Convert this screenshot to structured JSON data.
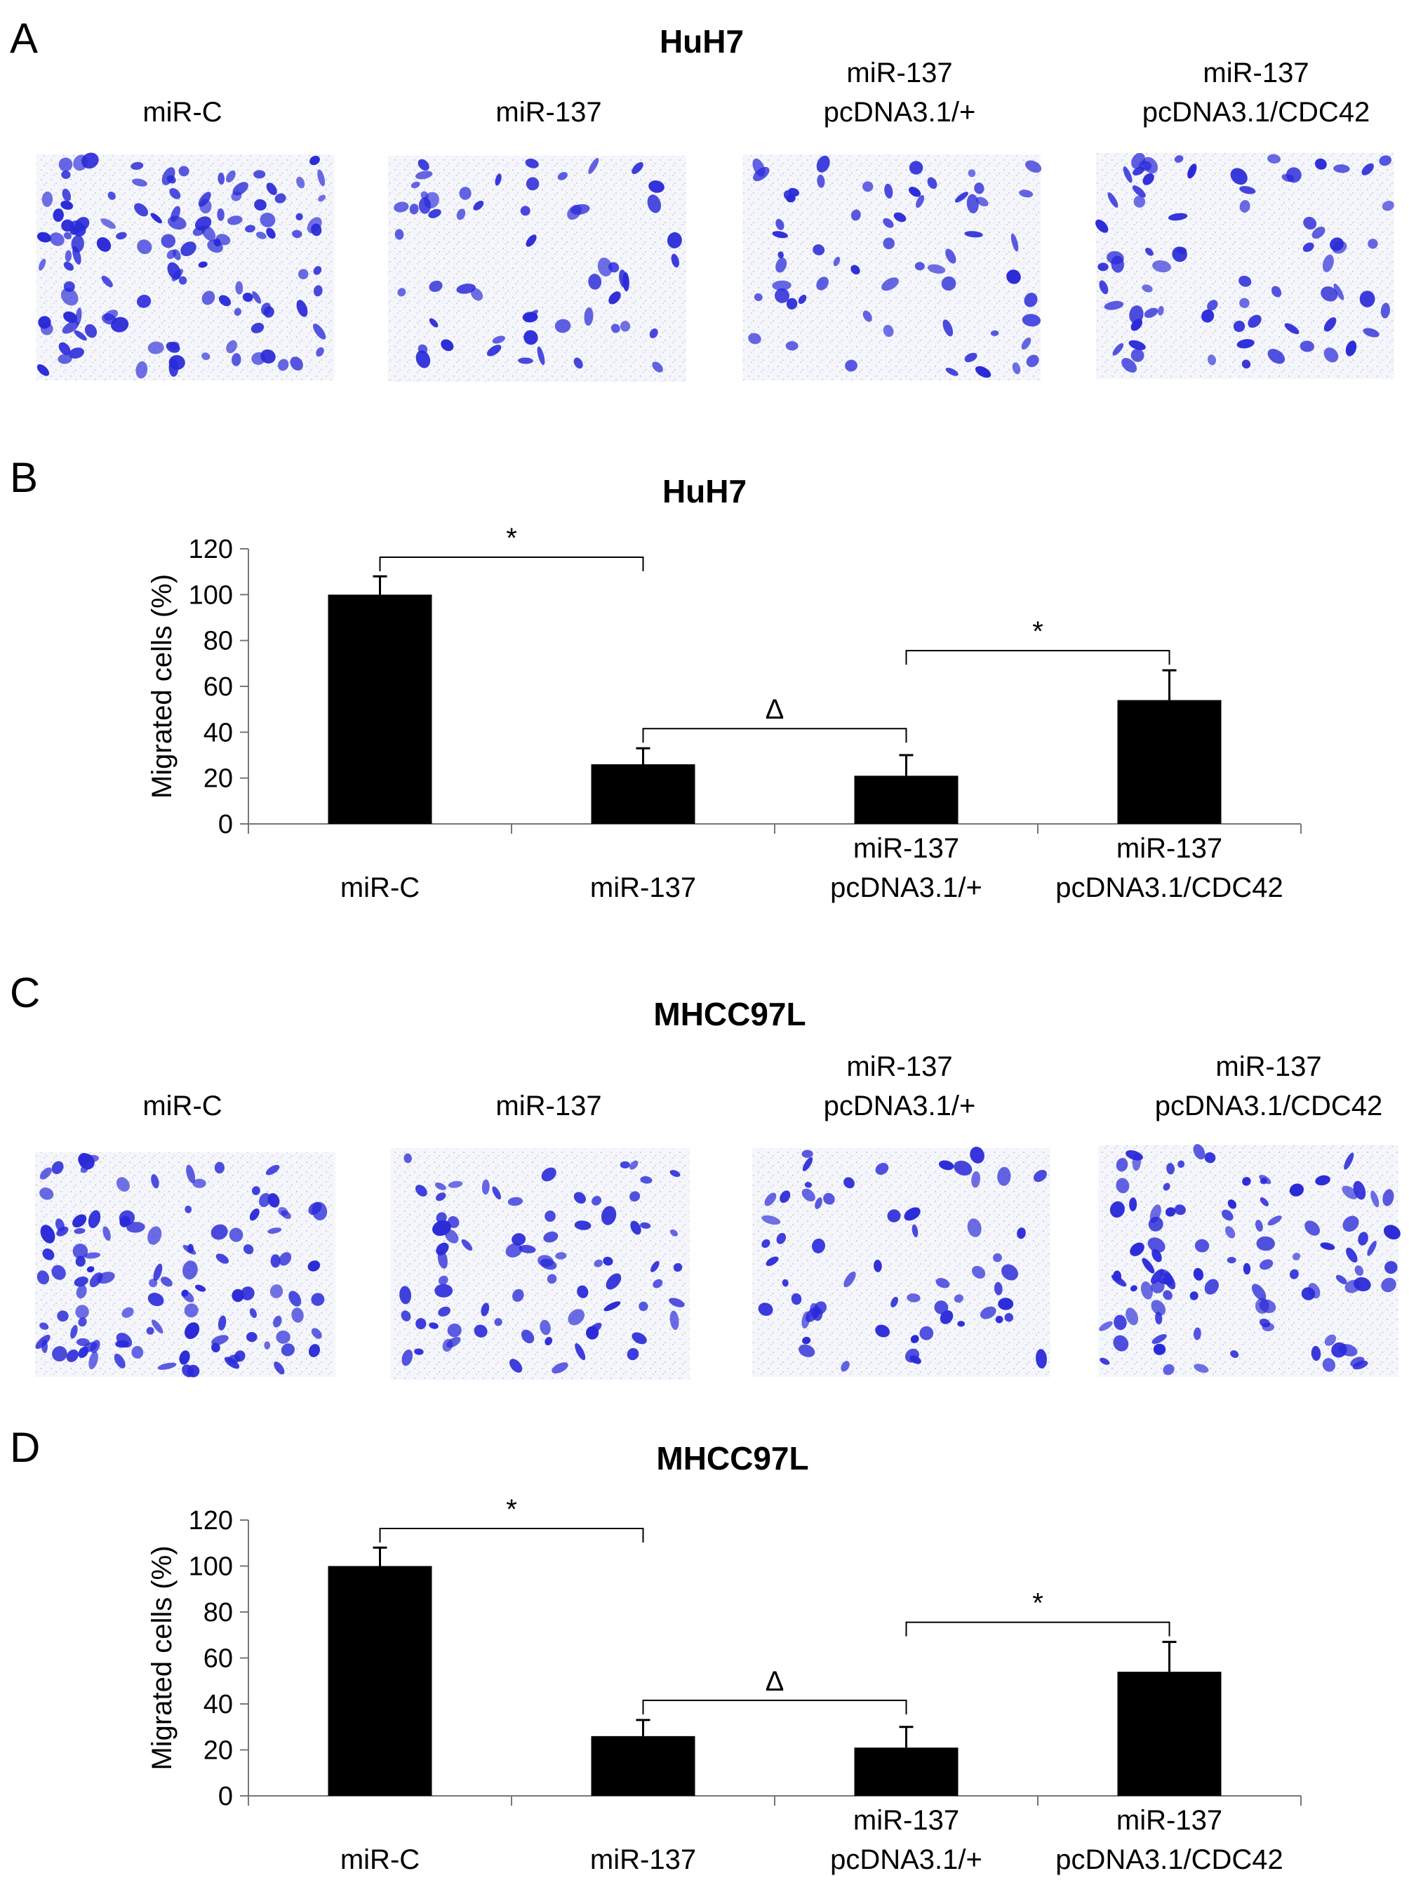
{
  "panels": {
    "A": {
      "letter": "A",
      "title": "HuH7",
      "labels": [
        "miR-C",
        "miR-137",
        "miR-137\npcDNA3.1/+",
        "miR-137\npcDNA3.1/CDC42"
      ]
    },
    "B": {
      "letter": "B"
    },
    "C": {
      "letter": "C",
      "title": "MHCC97L",
      "labels": [
        "miR-C",
        "miR-137",
        "miR-137\npcDNA3.1/+",
        "miR-137\npcDNA3.1/CDC42"
      ]
    },
    "D": {
      "letter": "D"
    }
  },
  "colors": {
    "bar": "#000000",
    "stain": "#2a2ad8",
    "background": "#ffffff"
  },
  "chart_data": [
    {
      "type": "bar",
      "title": "HuH7",
      "ylabel": "Migrated cells (%)",
      "xlabel": "",
      "ylim": [
        0,
        120
      ],
      "yticks": [
        0,
        20,
        40,
        60,
        80,
        100,
        120
      ],
      "categories": [
        "miR-C",
        "miR-137",
        "miR-137\npcDNA3.1/+",
        "miR-137\npcDNA3.1/CDC42"
      ],
      "values": [
        100,
        26,
        21,
        54
      ],
      "errors": [
        8,
        7,
        9,
        13
      ],
      "grid": false,
      "annotations": [
        {
          "from": 0,
          "to": 1,
          "symbol": "*"
        },
        {
          "from": 1,
          "to": 2,
          "symbol": "Δ"
        },
        {
          "from": 2,
          "to": 3,
          "symbol": "*"
        }
      ]
    },
    {
      "type": "bar",
      "title": "MHCC97L",
      "ylabel": "Migrated cells (%)",
      "xlabel": "",
      "ylim": [
        0,
        120
      ],
      "yticks": [
        0,
        20,
        40,
        60,
        80,
        100,
        120
      ],
      "categories": [
        "miR-C",
        "miR-137",
        "miR-137\npcDNA3.1/+",
        "miR-137\npcDNA3.1/CDC42"
      ],
      "values": [
        100,
        26,
        21,
        54
      ],
      "errors": [
        8,
        7,
        9,
        13
      ],
      "grid": false,
      "annotations": [
        {
          "from": 0,
          "to": 1,
          "symbol": "*"
        },
        {
          "from": 1,
          "to": 2,
          "symbol": "Δ"
        },
        {
          "from": 2,
          "to": 3,
          "symbol": "*"
        }
      ]
    }
  ]
}
